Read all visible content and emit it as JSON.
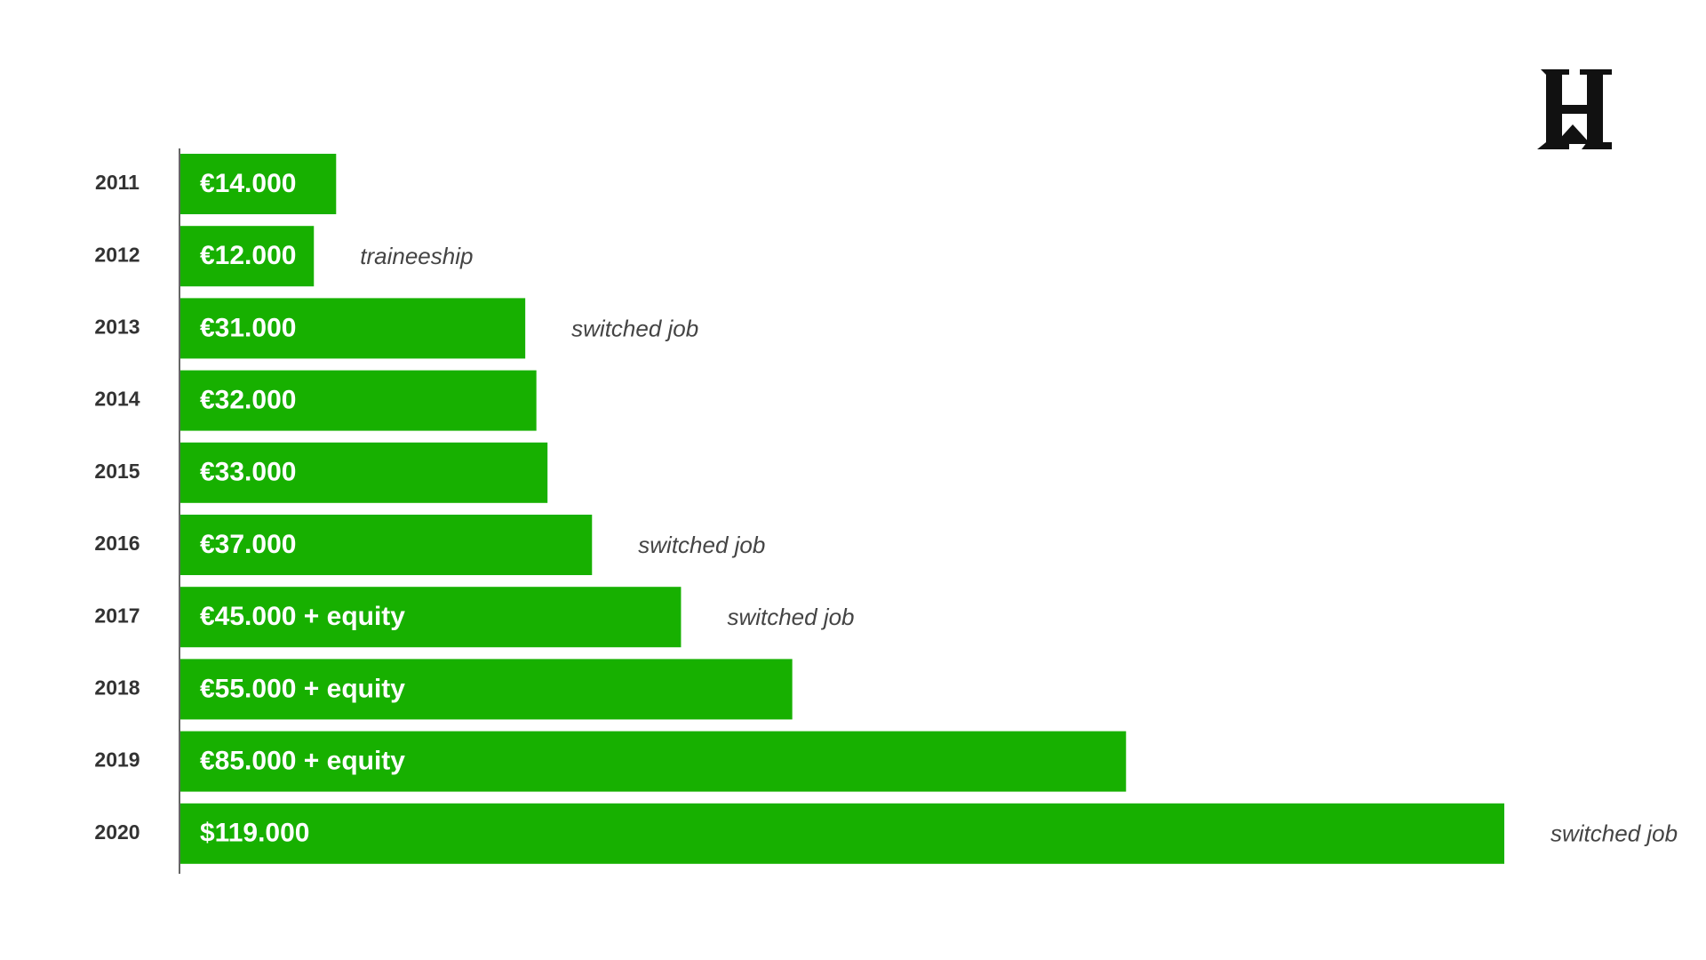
{
  "chart_data": {
    "type": "hbar",
    "categories": [
      "2011",
      "2012",
      "2013",
      "2014",
      "2015",
      "2016",
      "2017",
      "2018",
      "2019",
      "2020"
    ],
    "values": [
      14000,
      12000,
      31000,
      32000,
      33000,
      37000,
      45000,
      55000,
      85000,
      119000
    ],
    "value_labels": [
      "€14.000",
      "€12.000",
      "€31.000",
      "€32.000",
      "€33.000",
      "€37.000",
      "€45.000 + equity",
      "€55.000 + equity",
      "€85.000 + equity",
      "$119.000"
    ],
    "annotations": [
      null,
      "traineeship",
      "switched job",
      null,
      null,
      "switched job",
      "switched job",
      null,
      null,
      "switched job"
    ],
    "color": "#17b000"
  }
}
